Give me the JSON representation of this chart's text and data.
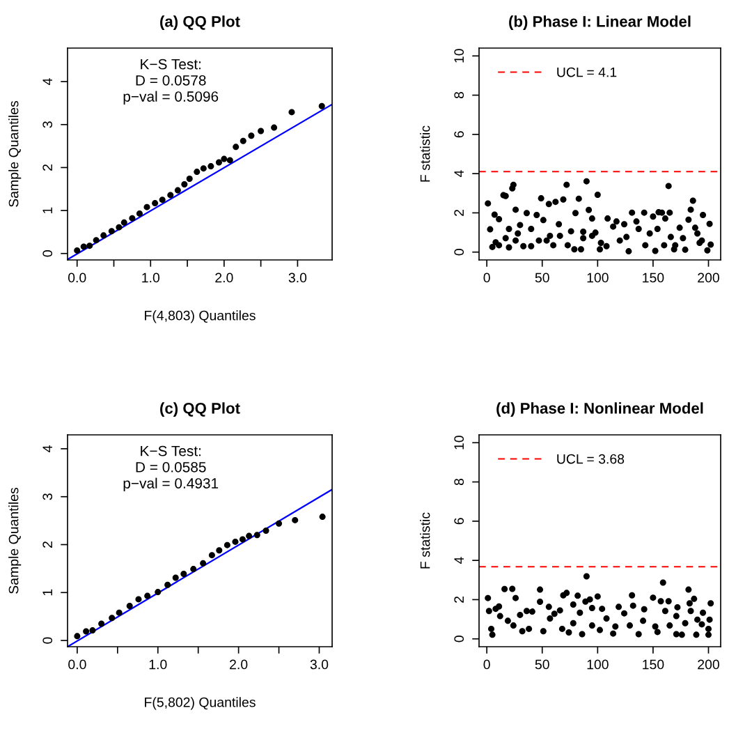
{
  "chart_data": [
    {
      "type": "scatter",
      "title": "(a) QQ Plot",
      "xlabel": "F(4,803) Quantiles",
      "ylabel": "Sample Quantiles",
      "marker": "circle",
      "grid": false,
      "annotations": [
        "K−S Test:\nD = 0.0578\np−val = 0.5096"
      ],
      "xlim": [
        -0.13,
        3.47
      ],
      "ylim": [
        -0.15,
        4.78
      ],
      "xticks": [
        {
          "value": 0,
          "label": "0.0"
        },
        {
          "value": 0.5,
          "label": null
        },
        {
          "value": 1,
          "label": "1.0"
        },
        {
          "value": 1.5,
          "label": null
        },
        {
          "value": 2,
          "label": "2.0"
        },
        {
          "value": 2.5,
          "label": null
        },
        {
          "value": 3,
          "label": "3.0"
        }
      ],
      "yticks": [
        0,
        1,
        2,
        3,
        4
      ],
      "series": [
        {
          "color": "#000000",
          "x": [
            0,
            0.09,
            0.17,
            0.26,
            0.36,
            0.47,
            0.57,
            0.64,
            0.75,
            0.85,
            0.95,
            1.06,
            1.16,
            1.27,
            1.37,
            1.46,
            1.53,
            1.63,
            1.72,
            1.82,
            1.93,
            2.0,
            2.08,
            2.16,
            2.26,
            2.37,
            2.5,
            2.68,
            2.92,
            3.33
          ],
          "values": [
            0.07,
            0.16,
            0.18,
            0.31,
            0.42,
            0.52,
            0.61,
            0.72,
            0.82,
            0.93,
            1.08,
            1.17,
            1.25,
            1.36,
            1.47,
            1.61,
            1.74,
            1.9,
            1.98,
            2.03,
            2.12,
            2.2,
            2.17,
            2.48,
            2.62,
            2.74,
            2.85,
            2.93,
            3.29,
            3.43
          ]
        },
        {
          "type": "line",
          "marker": "none",
          "color": "#0000ff",
          "x": [
            -0.13,
            3.47
          ],
          "values": [
            -0.14,
            3.47
          ]
        }
      ]
    },
    {
      "type": "scatter",
      "title": "(b) Phase I: Linear Model",
      "ylabel": "F statistic",
      "marker": "circle",
      "grid": false,
      "legend": "top left",
      "xlim": [
        -7,
        211
      ],
      "ylim": [
        -0.4,
        10.4
      ],
      "xticks": [
        0,
        50,
        100,
        150,
        200
      ],
      "yticks": [
        0,
        2,
        4,
        6,
        8,
        10
      ],
      "ref_lines": [
        {
          "axis": "y",
          "value": 4.1,
          "label": "UCL = 4.1",
          "color": "#ff0000",
          "line_style": "dashed"
        }
      ],
      "series": [
        {
          "color": "#000000",
          "x": [
            1,
            3,
            5,
            8,
            7,
            11,
            15,
            17,
            20,
            23,
            24,
            26,
            30,
            26,
            36,
            33,
            40,
            45,
            49,
            51,
            56,
            62,
            54,
            65,
            69,
            72,
            73,
            79,
            80,
            83,
            85,
            87,
            90,
            92,
            95,
            100,
            102,
            98,
            109,
            108,
            117,
            124,
            126,
            128,
            131,
            135,
            142,
            147,
            150,
            152,
            155,
            158,
            164,
            165,
            161,
            160,
            166,
            174,
            169,
            179,
            182,
            184,
            186,
            188,
            195,
            194,
            199,
            201,
            202,
            11,
            17,
            28,
            40,
            57,
            66,
            76,
            87,
            95,
            103,
            114,
            120,
            137,
            143,
            154,
            170,
            177,
            190,
            192,
            60,
            47,
            20
          ],
          "values": [
            2.48,
            1.16,
            0.26,
            0.5,
            1.91,
            1.68,
            2.9,
            2.86,
            0.24,
            3.25,
            3.43,
            2.16,
            1.38,
            0.59,
            1.99,
            0.3,
            0.3,
            1.89,
            2.74,
            1.63,
            2.45,
            2.56,
            0.59,
            1.42,
            2.68,
            3.43,
            0.35,
            0.14,
            1.99,
            2.72,
            0.14,
            1.04,
            3.61,
            2.15,
            1.71,
            2.92,
            0.14,
            0.99,
            1.71,
            0.3,
            1.56,
            1.42,
            0.77,
            0.04,
            2.01,
            1.56,
            2.01,
            0.95,
            1.81,
            0.06,
            2.03,
            2.01,
            3.37,
            2.01,
            1.71,
            0.35,
            0.77,
            1.24,
            0.14,
            0.12,
            1.65,
            2.16,
            2.62,
            1.24,
            1.89,
            0.59,
            0.09,
            1.44,
            0.38,
            0.35,
            0.71,
            0.95,
            1.18,
            0.83,
            0.83,
            1.06,
            0.71,
            0.83,
            0.47,
            1.3,
            0.59,
            1.18,
            0.35,
            1.18,
            0.35,
            0.71,
            0.95,
            0.47,
            0.35,
            0.59,
            1.18
          ]
        }
      ]
    },
    {
      "type": "scatter",
      "title": "(c) QQ Plot",
      "xlabel": "F(5,802) Quantiles",
      "ylabel": "Sample Quantiles",
      "marker": "circle",
      "grid": false,
      "annotations": [
        "K−S Test:\nD = 0.0585\np−val = 0.4931"
      ],
      "xlim": [
        -0.12,
        3.16
      ],
      "ylim": [
        -0.13,
        4.29
      ],
      "xticks": [
        {
          "value": 0,
          "label": "0.0"
        },
        {
          "value": 0.5,
          "label": null
        },
        {
          "value": 1,
          "label": "1.0"
        },
        {
          "value": 1.5,
          "label": null
        },
        {
          "value": 2,
          "label": "2.0"
        },
        {
          "value": 2.5,
          "label": null
        },
        {
          "value": 3,
          "label": "3.0"
        }
      ],
      "yticks": [
        0,
        1,
        2,
        3,
        4
      ],
      "series": [
        {
          "color": "#000000",
          "x": [
            0,
            0.11,
            0.19,
            0.3,
            0.43,
            0.52,
            0.65,
            0.76,
            0.87,
            1.0,
            1.12,
            1.22,
            1.32,
            1.44,
            1.56,
            1.67,
            1.76,
            1.86,
            1.96,
            2.05,
            2.13,
            2.23,
            2.34,
            2.5,
            2.7,
            3.04
          ],
          "values": [
            0.09,
            0.19,
            0.21,
            0.35,
            0.47,
            0.58,
            0.72,
            0.86,
            0.93,
            1.01,
            1.16,
            1.31,
            1.39,
            1.49,
            1.61,
            1.78,
            1.88,
            1.99,
            2.06,
            2.11,
            2.18,
            2.2,
            2.29,
            2.44,
            2.51,
            2.58
          ]
        },
        {
          "type": "line",
          "marker": "none",
          "color": "#0000ff",
          "x": [
            -0.12,
            3.16
          ],
          "values": [
            -0.13,
            3.15
          ]
        }
      ]
    },
    {
      "type": "scatter",
      "title": "(d) Phase I: Nonlinear Model",
      "ylabel": "F statistic",
      "marker": "circle",
      "grid": false,
      "legend": "top left",
      "xlim": [
        -7,
        211
      ],
      "ylim": [
        -0.4,
        10.4
      ],
      "xticks": [
        0,
        50,
        100,
        150,
        200
      ],
      "yticks": [
        0,
        2,
        4,
        6,
        8,
        10
      ],
      "ref_lines": [
        {
          "axis": "y",
          "value": 3.68,
          "label": "UCL = 3.68",
          "color": "#ff0000",
          "line_style": "dashed"
        }
      ],
      "series": [
        {
          "color": "#000000",
          "x": [
            1,
            2,
            5,
            4,
            8,
            11,
            12,
            16,
            19,
            23,
            26,
            30,
            32,
            36,
            41,
            48,
            48,
            51,
            56,
            61,
            66,
            69,
            72,
            74,
            78,
            82,
            84,
            86,
            90,
            89,
            93,
            95,
            100,
            104,
            102,
            114,
            119,
            124,
            131,
            132,
            137,
            142,
            150,
            154,
            159,
            157,
            164,
            161,
            165,
            172,
            171,
            171,
            176,
            182,
            183,
            187,
            184,
            190,
            189,
            195,
            200,
            201,
            202,
            200,
            24,
            38,
            57,
            68,
            78,
            95,
            108,
            116,
            129,
            141,
            152,
            179,
            194
          ],
          "values": [
            2.08,
            1.42,
            0.21,
            0.51,
            1.53,
            1.65,
            1.16,
            2.54,
            0.92,
            2.55,
            2.08,
            1.22,
            0.39,
            1.42,
            1.39,
            2.51,
            1.89,
            0.39,
            1.63,
            1.28,
            1.45,
            2.22,
            2.34,
            0.33,
            1.75,
            2.2,
            1.33,
            0.24,
            3.19,
            1.9,
            2.01,
            1.57,
            2.16,
            1.53,
            0.45,
            0.27,
            1.63,
            1.3,
            2.22,
            1.69,
            0.24,
            1.51,
            2.1,
            0.35,
            2.87,
            1.92,
            1.92,
            1.42,
            0.68,
            1.61,
            1.16,
            0.24,
            0.21,
            2.51,
            1.81,
            2.04,
            1.42,
            0.98,
            0.21,
            1.33,
            0.21,
            0.98,
            1.81,
            0.51,
            0.68,
            0.51,
            1.04,
            0.51,
            0.8,
            0.68,
            1.04,
            0.63,
            0.68,
            0.92,
            0.63,
            0.8,
            0.74
          ]
        }
      ]
    }
  ]
}
